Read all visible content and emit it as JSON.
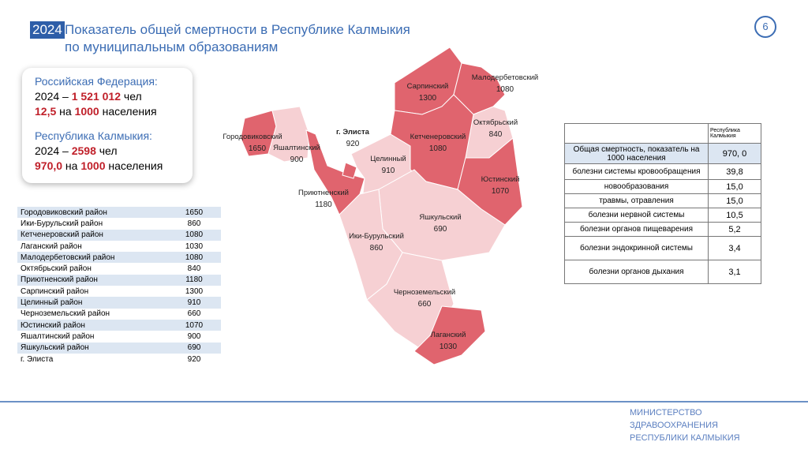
{
  "header": {
    "year": "2024",
    "title_line1": "Показатель общей смертности в Республике Калмыкия",
    "title_line2": "по муниципальным образованиям",
    "page": "6"
  },
  "info": [
    {
      "heading": "Российская Федерация:",
      "line1": [
        "2024 – ",
        "1 521 012",
        " чел"
      ],
      "line2": [
        "12,5",
        " на ",
        "1000",
        " населения"
      ]
    },
    {
      "heading": "Республика Калмыкия:",
      "line1": [
        "2024 – ",
        "2598",
        " чел"
      ],
      "line2": [
        "970,0",
        " на ",
        "1000",
        " населения"
      ]
    }
  ],
  "district_table": {
    "rows": [
      [
        "Городовиковский район",
        "1650"
      ],
      [
        "Ики-Бурульский район",
        "860"
      ],
      [
        "Кетченеровский район",
        "1080"
      ],
      [
        "Лаганский район",
        "1030"
      ],
      [
        "Малодербетовский район",
        "1080"
      ],
      [
        "Октябрьский район",
        "840"
      ],
      [
        "Приютненский район",
        "1180"
      ],
      [
        "Сарпинский район",
        "1300"
      ],
      [
        "Целинный  район",
        "910"
      ],
      [
        "Черноземельский  район",
        "660"
      ],
      [
        "Юстинский район",
        "1070"
      ],
      [
        "Яшалтинский район",
        "900"
      ],
      [
        "Яшкульский  район",
        "690"
      ],
      [
        "г. Элиста",
        "920"
      ]
    ]
  },
  "map": {
    "regions": [
      {
        "name": "Городовиковский",
        "value": "1650",
        "color": "#e0646e"
      },
      {
        "name": "Яшалтинский",
        "value": "900",
        "color": "#f6d0d3"
      },
      {
        "name": "Приютненский",
        "value": "1180",
        "color": "#e0646e"
      },
      {
        "name": "г. Элиста",
        "value": "920",
        "color": "#e0646e"
      },
      {
        "name": "Целинный",
        "value": "910",
        "color": "#f6d0d3"
      },
      {
        "name": "Сарпинский",
        "value": "1300",
        "color": "#e0646e"
      },
      {
        "name": "Малодербетовский",
        "value": "1080",
        "color": "#e0646e"
      },
      {
        "name": "Октябрьский",
        "value": "840",
        "color": "#f6d0d3"
      },
      {
        "name": "Кетченеровский",
        "value": "1080",
        "color": "#e0646e"
      },
      {
        "name": "Юстинский",
        "value": "1070",
        "color": "#e0646e"
      },
      {
        "name": "Яшкульский",
        "value": "690",
        "color": "#f6d0d3"
      },
      {
        "name": "Ики-Бурульский",
        "value": "860",
        "color": "#f6d0d3"
      },
      {
        "name": "Черноземельский",
        "value": "660",
        "color": "#f6d0d3"
      },
      {
        "name": "Лаганский",
        "value": "1030",
        "color": "#e0646e"
      }
    ]
  },
  "causes_table": {
    "header": "Республика Калмыкия",
    "rows": [
      [
        "Общая смертность, показатель на 1000 населения",
        "970, 0"
      ],
      [
        "болезни системы кровообращения",
        "39,8"
      ],
      [
        "новообразования",
        "15,0"
      ],
      [
        "травмы, отравления",
        "15,0"
      ],
      [
        "болезни нервной системы",
        "10,5"
      ],
      [
        "болезни органов пищеварения",
        "5,2"
      ],
      [
        "болезни эндокринной системы",
        "3,4"
      ],
      [
        "болезни органов дыхания",
        "3,1"
      ]
    ]
  },
  "footer": {
    "lines": [
      "МИНИСТЕРСТВО",
      "ЗДРАВООХРАНЕНИЯ",
      "РЕСПУБЛИКИ КАЛМЫКИЯ"
    ]
  }
}
